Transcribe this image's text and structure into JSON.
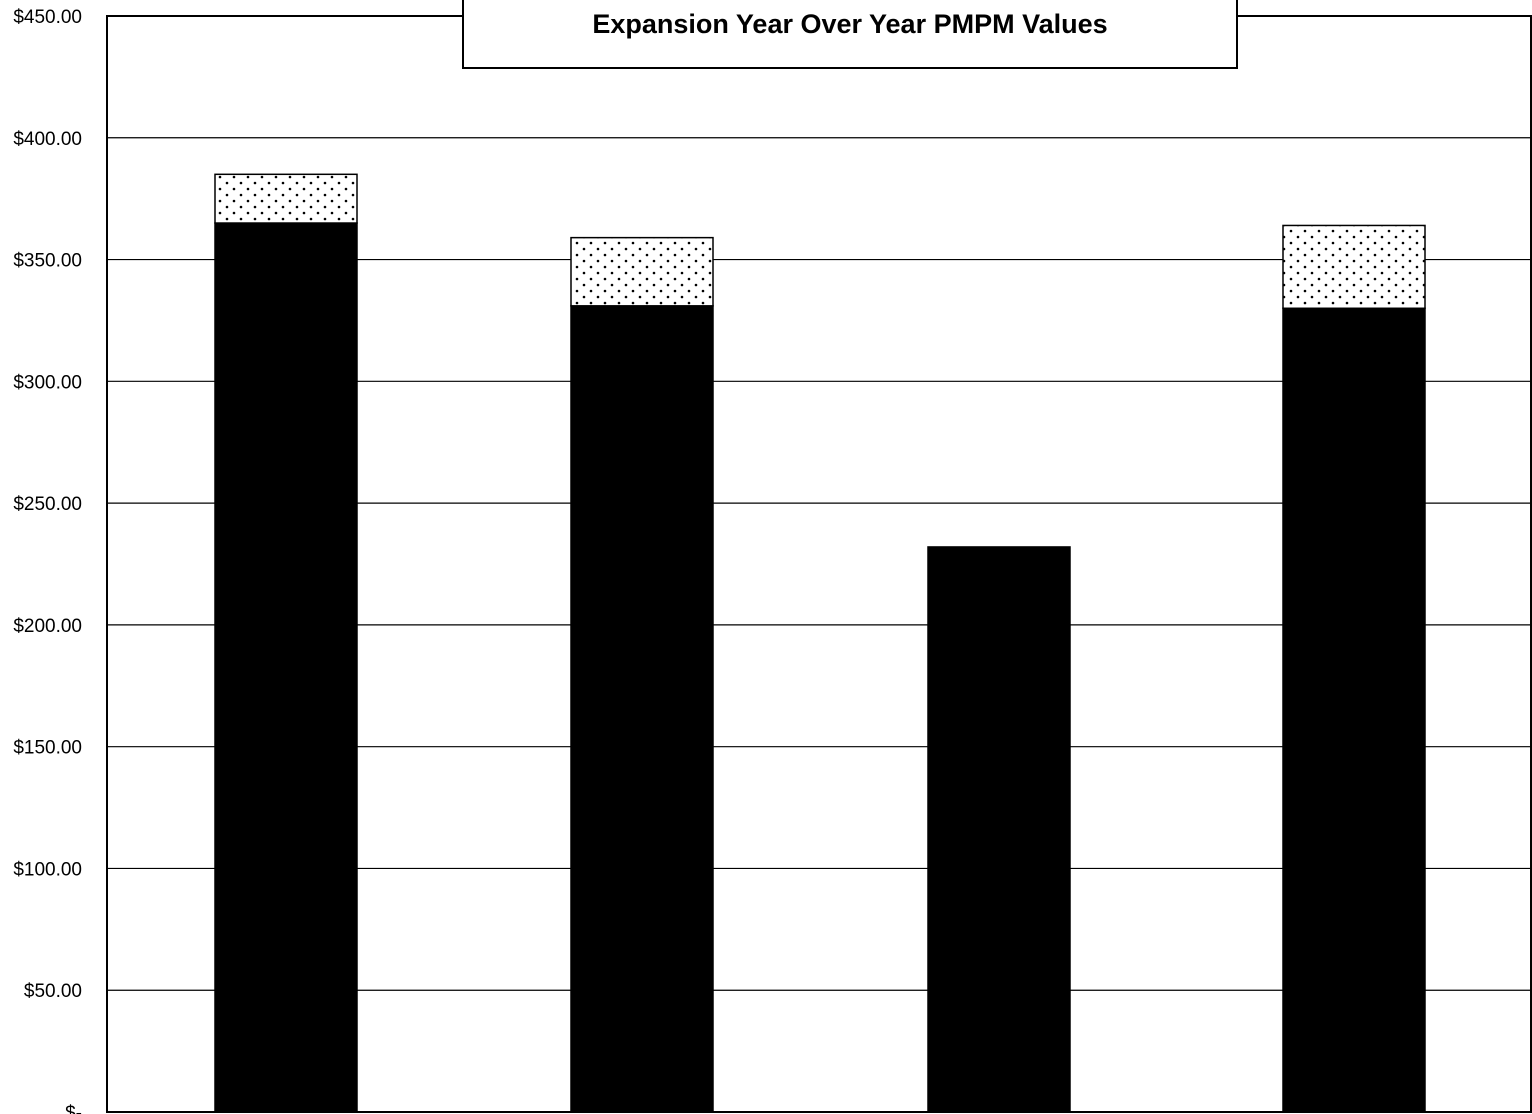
{
  "chart_data": {
    "type": "bar",
    "stacked": true,
    "title": "Expansion Year Over Year PMPM Values",
    "xlabel": "",
    "ylabel": "",
    "ylim": [
      0,
      450
    ],
    "y_ticks": [
      0,
      50,
      100,
      150,
      200,
      250,
      300,
      350,
      400,
      450
    ],
    "y_tick_labels": [
      "$-",
      "$50.00",
      "$100.00",
      "$150.00",
      "$200.00",
      "$250.00",
      "$300.00",
      "$350.00",
      "$400.00",
      "$450.00"
    ],
    "grid": true,
    "legend": "none",
    "categories": [
      "",
      "",
      "",
      ""
    ],
    "series": [
      {
        "values": [
          365,
          331,
          232,
          330
        ],
        "color": "#000000",
        "pattern": "solid"
      },
      {
        "values": [
          20,
          28,
          0,
          34
        ],
        "color": "#ffffff",
        "pattern": "dotted"
      }
    ]
  }
}
